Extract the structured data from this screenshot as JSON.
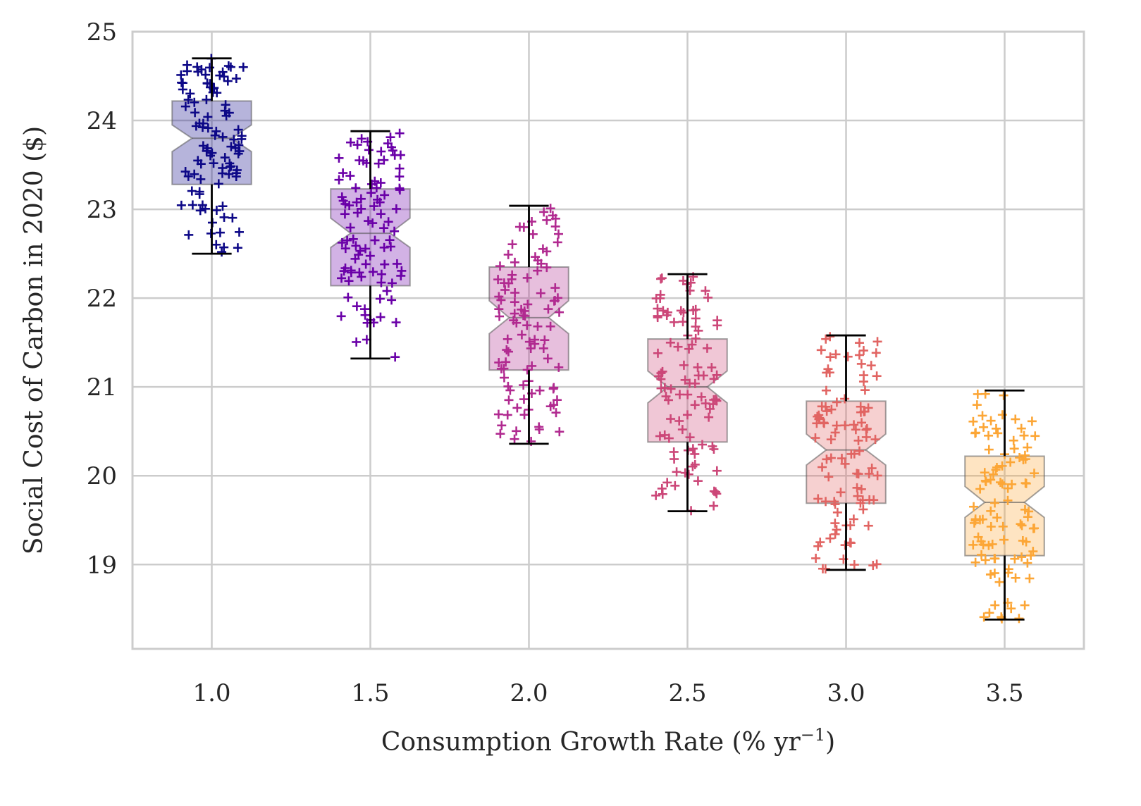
{
  "chart_data": {
    "type": "box",
    "xlabel": "Consumption Growth Rate (% yr",
    "xlabel_superscript": "−1",
    "xlabel_suffix": ")",
    "ylabel": "Social Cost of Carbon in 2020 ($)",
    "categories": [
      "1.0",
      "1.5",
      "2.0",
      "2.5",
      "3.0",
      "3.5"
    ],
    "x_values": [
      1.0,
      1.5,
      2.0,
      2.5,
      3.0,
      3.5
    ],
    "xlim": [
      0.75,
      3.75
    ],
    "ylim": [
      18.05,
      25.0
    ],
    "y_ticks": [
      "19",
      "20",
      "21",
      "22",
      "23",
      "24",
      "25"
    ],
    "grid": true,
    "notched": true,
    "marker": "+",
    "boxes": [
      {
        "x": 1.0,
        "color": "#0d0887",
        "whisker_low": 22.5,
        "q1": 23.28,
        "median": 23.8,
        "q3": 24.22,
        "whisker_high": 24.7,
        "notch_low": 23.65,
        "notch_high": 23.95
      },
      {
        "x": 1.5,
        "color": "#6a00a8",
        "whisker_low": 21.32,
        "q1": 22.14,
        "median": 22.73,
        "q3": 23.23,
        "whisker_high": 23.88,
        "notch_low": 22.57,
        "notch_high": 22.9
      },
      {
        "x": 2.0,
        "color": "#b12a90",
        "whisker_low": 20.36,
        "q1": 21.19,
        "median": 21.78,
        "q3": 22.35,
        "whisker_high": 23.04,
        "notch_low": 21.6,
        "notch_high": 21.97
      },
      {
        "x": 2.5,
        "color": "#cc4778",
        "whisker_low": 19.6,
        "q1": 20.38,
        "median": 21.0,
        "q3": 21.54,
        "whisker_high": 22.27,
        "notch_low": 20.82,
        "notch_high": 21.18
      },
      {
        "x": 3.0,
        "color": "#e16462",
        "whisker_low": 18.94,
        "q1": 19.69,
        "median": 20.29,
        "q3": 20.84,
        "whisker_high": 21.58,
        "notch_low": 20.12,
        "notch_high": 20.47
      },
      {
        "x": 3.5,
        "color": "#fca636",
        "whisker_low": 18.38,
        "q1": 19.1,
        "median": 19.7,
        "q3": 20.22,
        "whisker_high": 20.96,
        "notch_low": 19.53,
        "notch_high": 19.88
      }
    ],
    "point_colors": [
      "#0d0887",
      "#6a00a8",
      "#b12a90",
      "#cc4778",
      "#e16462",
      "#fca636"
    ],
    "points_per_group": 100
  }
}
